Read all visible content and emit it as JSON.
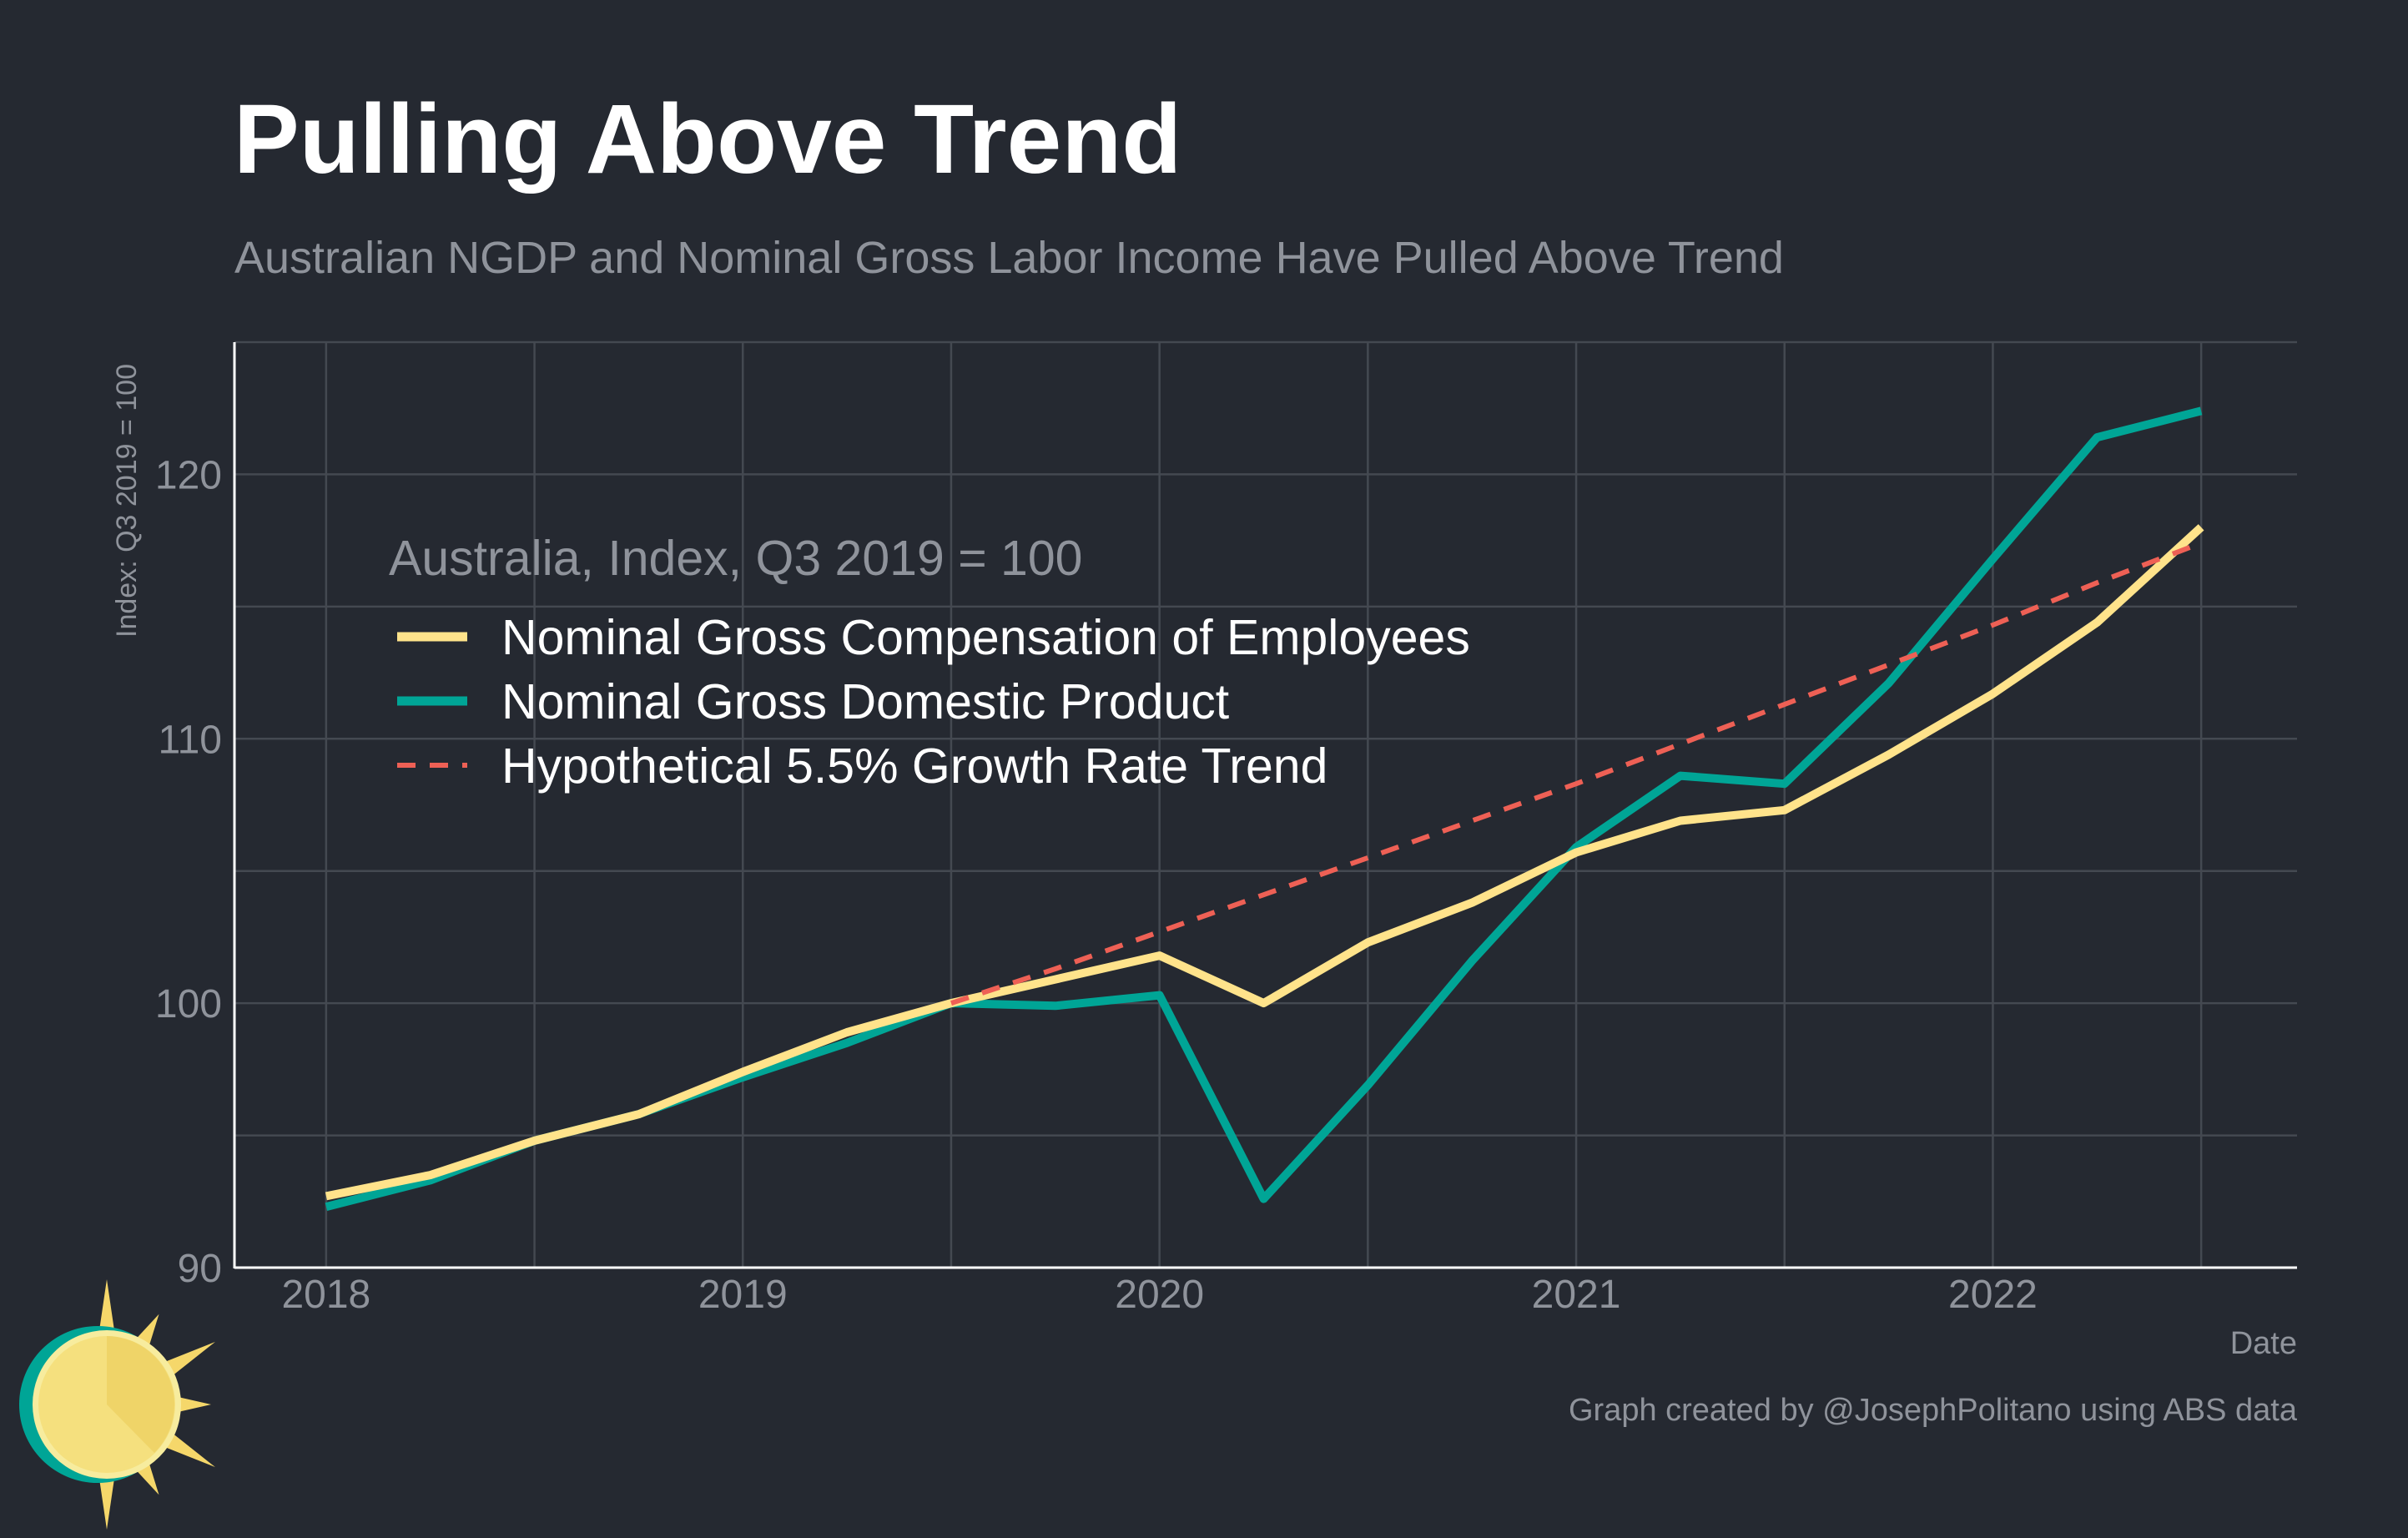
{
  "title": "Pulling Above Trend",
  "subtitle": "Australian NGDP and Nominal Gross Labor Income Have Pulled Above Trend",
  "chart_data": {
    "type": "line",
    "title": "Pulling Above Trend",
    "subtitle": "Australian NGDP and Nominal Gross Labor Income Have Pulled Above Trend",
    "xlabel": "Date",
    "ylabel": "Index: Q3 2019 = 100",
    "xlim": [
      2017.78,
      2022.73
    ],
    "ylim": [
      90,
      125
    ],
    "grid": true,
    "legend_title": "Australia, Index, Q3 2019 = 100",
    "legend_position": "upper-left",
    "x_ticks": [
      {
        "value": 2018,
        "label": "2018"
      },
      {
        "value": 2019,
        "label": "2019"
      },
      {
        "value": 2020,
        "label": "2020"
      },
      {
        "value": 2021,
        "label": "2021"
      },
      {
        "value": 2022,
        "label": "2022"
      }
    ],
    "y_ticks": [
      {
        "value": 90,
        "label": "90"
      },
      {
        "value": 100,
        "label": "100"
      },
      {
        "value": 110,
        "label": "110"
      },
      {
        "value": 120,
        "label": "120"
      }
    ],
    "x": [
      2018.0,
      2018.25,
      2018.5,
      2018.75,
      2019.0,
      2019.25,
      2019.5,
      2019.75,
      2020.0,
      2020.25,
      2020.5,
      2020.75,
      2021.0,
      2021.25,
      2021.5,
      2021.75,
      2022.0,
      2022.25,
      2022.5
    ],
    "series": [
      {
        "name": "Nominal Gross Domestic Product",
        "color": "#00a596",
        "style": "solid",
        "x": [
          2018.0,
          2018.25,
          2018.5,
          2018.75,
          2019.0,
          2019.25,
          2019.5,
          2019.75,
          2020.0,
          2020.25,
          2020.5,
          2020.75,
          2021.0,
          2021.25,
          2021.5,
          2021.75,
          2022.0,
          2022.25,
          2022.5
        ],
        "values": [
          92.3,
          93.3,
          94.8,
          95.8,
          97.2,
          98.5,
          100.0,
          99.9,
          100.3,
          92.6,
          96.9,
          101.6,
          105.9,
          108.6,
          108.3,
          112.1,
          116.8,
          121.4,
          122.4
        ]
      },
      {
        "name": "Nominal Gross Compensation of Employees",
        "color": "#ffe38b",
        "style": "solid",
        "x": [
          2018.0,
          2018.25,
          2018.5,
          2018.75,
          2019.0,
          2019.25,
          2019.5,
          2019.75,
          2020.0,
          2020.25,
          2020.5,
          2020.75,
          2021.0,
          2021.25,
          2021.5,
          2021.75,
          2022.0,
          2022.25,
          2022.5
        ],
        "values": [
          92.7,
          93.5,
          94.8,
          95.8,
          97.4,
          98.9,
          100.0,
          100.9,
          101.8,
          100.0,
          102.3,
          103.8,
          105.7,
          106.9,
          107.3,
          109.4,
          111.7,
          114.4,
          118.0
        ]
      },
      {
        "name": "Hypothetical 5.5% Growth Rate Trend",
        "color": "#ee6055",
        "style": "dashed",
        "x": [
          2019.5,
          2019.75,
          2020.0,
          2020.25,
          2020.5,
          2020.75,
          2021.0,
          2021.25,
          2021.5,
          2021.75,
          2022.0,
          2022.25,
          2022.5
        ],
        "values": [
          100.0,
          101.3,
          102.7,
          104.1,
          105.5,
          106.9,
          108.3,
          109.8,
          111.3,
          112.8,
          114.3,
          115.9,
          117.4
        ]
      }
    ],
    "legend_order": [
      "Nominal Gross Compensation of Employees",
      "Nominal Gross Domestic Product",
      "Hypothetical 5.5% Growth Rate Trend"
    ],
    "annotations": [
      "Graph created by @JosephPolitano using ABS data"
    ]
  },
  "credit": "Graph created by @JosephPolitano using ABS data",
  "logo": {
    "icon": "sun-logo-icon",
    "fill": "#f5e07e",
    "ring": "#00a596",
    "rays": "#f5d76a"
  },
  "colors": {
    "background": "#252931",
    "grid": "#444951",
    "text_muted": "#8f939b",
    "axis": "#ffffff"
  }
}
